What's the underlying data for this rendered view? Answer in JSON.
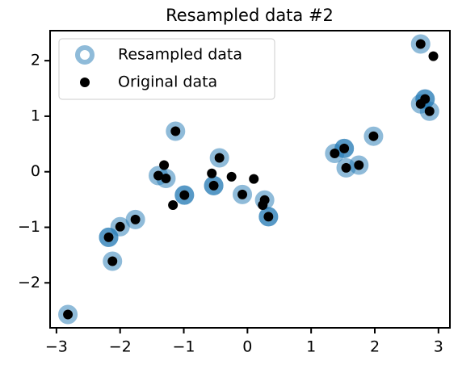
{
  "chart_data": {
    "type": "scatter",
    "title": "Resampled data #2",
    "xlim": [
      -3.1,
      3.18
    ],
    "ylim": [
      -2.81,
      2.54
    ],
    "xticks": [
      {
        "value": -3,
        "label": "−3"
      },
      {
        "value": -2,
        "label": "−2"
      },
      {
        "value": -1,
        "label": "−1"
      },
      0,
      1,
      2,
      3
    ],
    "yticks": [
      {
        "value": -2,
        "label": "−2"
      },
      {
        "value": -1,
        "label": "−1"
      },
      0,
      1,
      2
    ],
    "legend": "upper left",
    "series": [
      {
        "name": "Resampled data",
        "color": "#1f77b4",
        "alpha": 0.5,
        "marker": "ring",
        "x": [
          -2.82,
          -2.12,
          -2.18,
          -2.18,
          -2.0,
          -1.76,
          -1.4,
          -1.28,
          -1.13,
          -0.99,
          -0.99,
          -0.53,
          -0.53,
          -0.44,
          -0.08,
          0.27,
          0.33,
          0.33,
          1.37,
          1.52,
          1.52,
          1.55,
          1.75,
          1.98,
          2.72,
          2.72,
          2.79,
          2.79,
          2.86
        ],
        "y": [
          -2.57,
          -1.61,
          -1.18,
          -1.18,
          -0.99,
          -0.86,
          -0.07,
          -0.12,
          0.73,
          -0.42,
          -0.42,
          -0.25,
          -0.25,
          0.25,
          -0.41,
          -0.51,
          -0.81,
          -0.81,
          0.33,
          0.42,
          0.42,
          0.07,
          0.12,
          0.64,
          2.3,
          1.22,
          1.31,
          1.31,
          1.09
        ]
      },
      {
        "name": "Original data",
        "color": "#000000",
        "alpha": 1,
        "marker": "dot",
        "x": [
          -2.82,
          -2.12,
          -2.18,
          -2.0,
          -1.76,
          -1.4,
          -1.31,
          -1.28,
          -1.17,
          -1.13,
          -0.99,
          -0.56,
          -0.53,
          -0.44,
          -0.25,
          -0.08,
          0.1,
          0.24,
          0.27,
          0.33,
          1.37,
          1.52,
          1.55,
          1.75,
          1.98,
          2.72,
          2.92,
          2.72,
          2.79,
          2.86
        ],
        "y": [
          -2.57,
          -1.61,
          -1.18,
          -0.99,
          -0.86,
          -0.07,
          0.12,
          -0.12,
          -0.6,
          0.73,
          -0.42,
          -0.03,
          -0.25,
          0.25,
          -0.09,
          -0.41,
          -0.13,
          -0.6,
          -0.51,
          -0.81,
          0.33,
          0.42,
          0.07,
          0.12,
          0.64,
          2.3,
          2.08,
          1.22,
          1.31,
          1.09
        ]
      }
    ]
  }
}
